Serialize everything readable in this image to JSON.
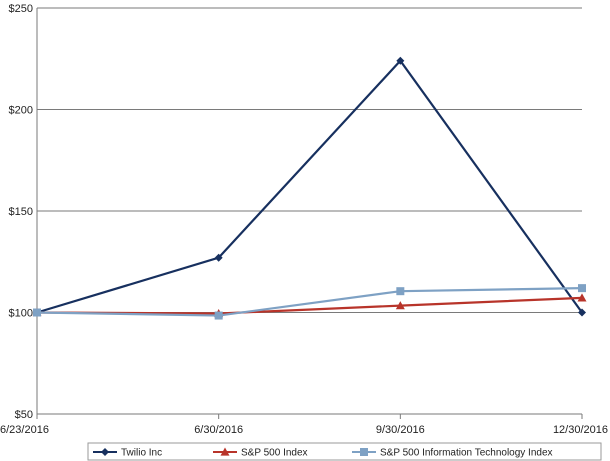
{
  "chart_data": {
    "type": "line",
    "title": "",
    "xlabel": "",
    "ylabel": "",
    "categories": [
      "6/23/2016",
      "6/30/2016",
      "9/30/2016",
      "12/30/2016"
    ],
    "ylim": [
      50,
      250
    ],
    "yticks": [
      50,
      100,
      150,
      200,
      250
    ],
    "ytick_labels": [
      "$50",
      "$100",
      "$150",
      "$200",
      "$250"
    ],
    "grid": "horizontal",
    "legend_position": "bottom",
    "series": [
      {
        "name": "Twilio Inc",
        "values": [
          100,
          127,
          224,
          100
        ],
        "color": "#17305f",
        "marker": "diamond"
      },
      {
        "name": "S&P 500 Index",
        "values": [
          100,
          99.5,
          103.4,
          107.2
        ],
        "color": "#b8342a",
        "marker": "triangle"
      },
      {
        "name": "S&P 500 Information Technology Index",
        "values": [
          100,
          98.5,
          110.5,
          112
        ],
        "color": "#7ea1c4",
        "marker": "square"
      }
    ]
  }
}
